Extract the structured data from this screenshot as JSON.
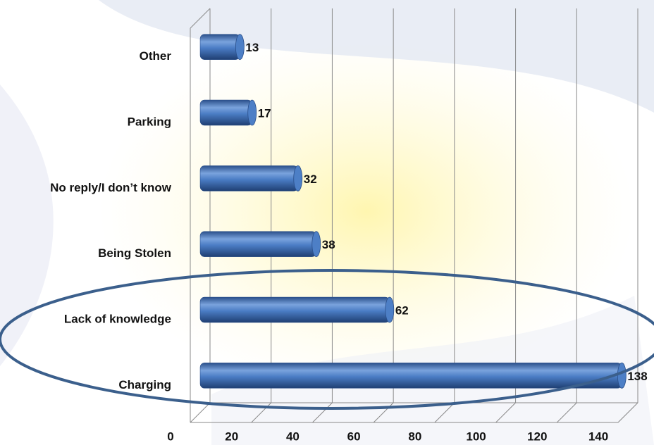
{
  "chart_data": {
    "type": "bar",
    "orientation": "horizontal",
    "categories": [
      "Other",
      "Parking",
      "No reply/I don’t know",
      "Being Stolen",
      "Lack of knowledge",
      "Charging"
    ],
    "values": [
      13,
      17,
      32,
      38,
      62,
      138
    ],
    "color": "#3d6fb8",
    "xlim": [
      0,
      140
    ],
    "xticks": [
      0,
      20,
      40,
      60,
      80,
      100,
      120,
      140
    ],
    "grid": true
  }
}
